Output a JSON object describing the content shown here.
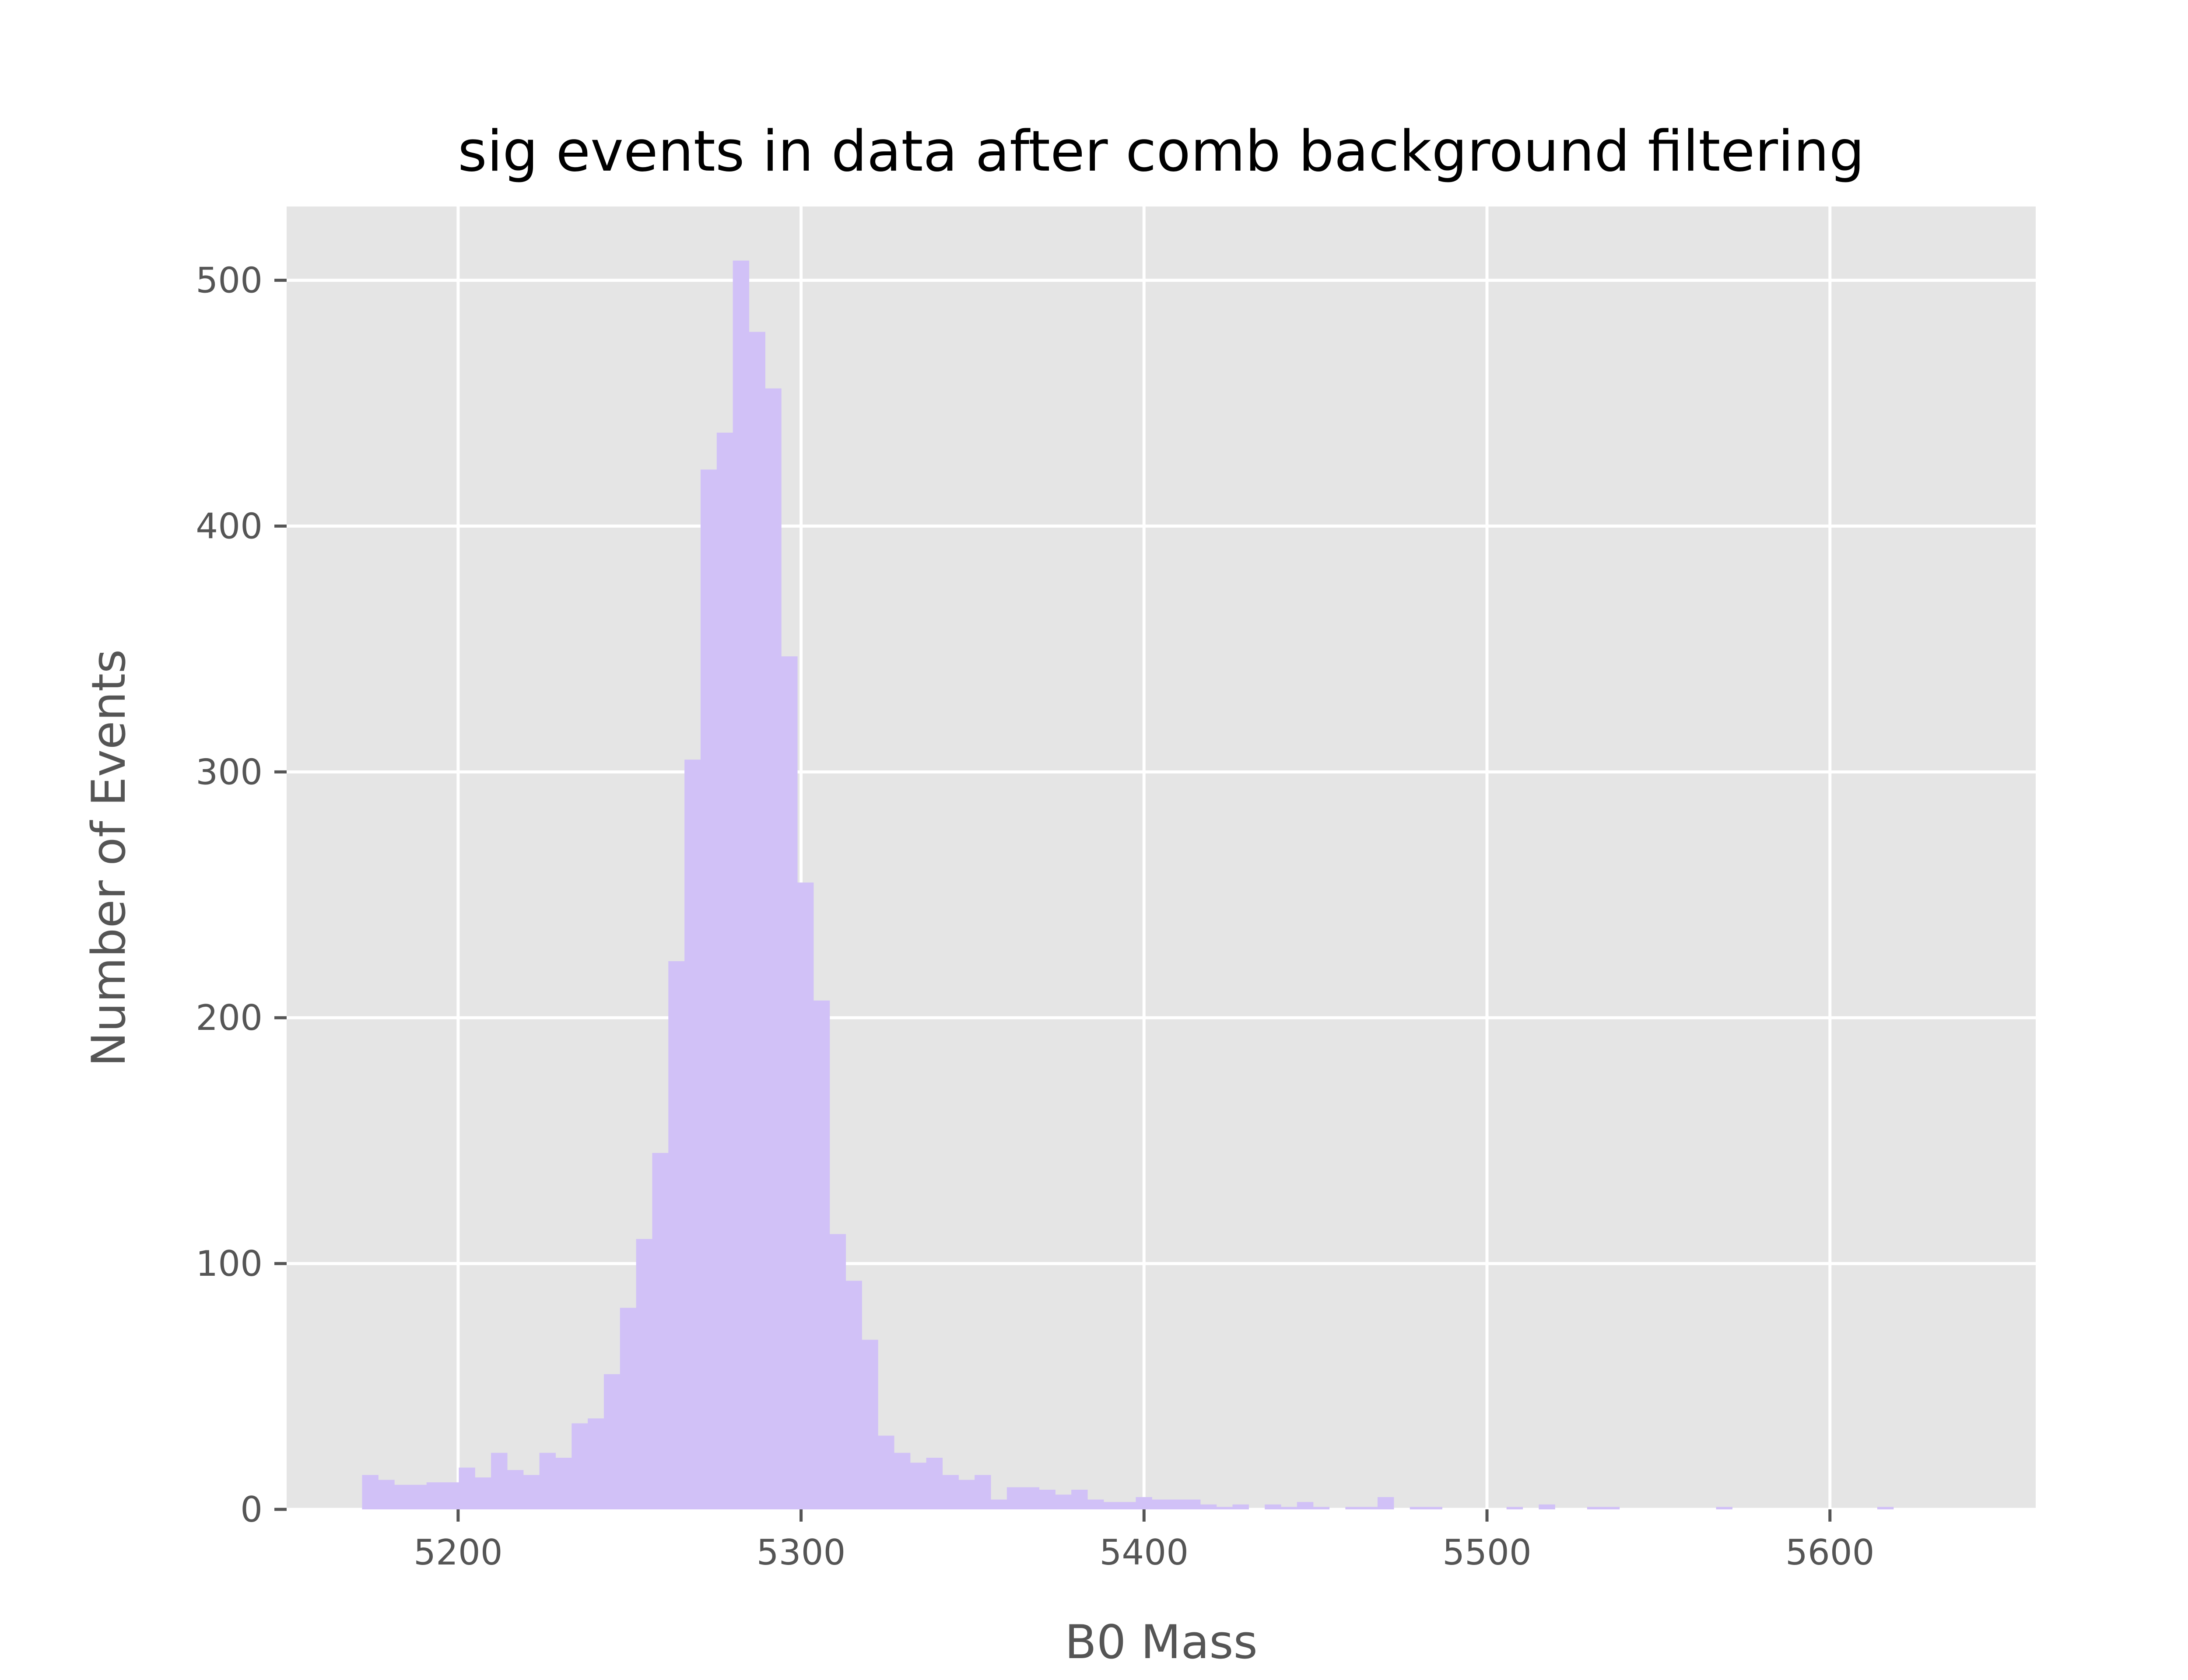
{
  "chart_data": {
    "type": "bar",
    "title": "sig events in data after comb background filtering",
    "xlabel": "B0 Mass",
    "ylabel": "Number of Events",
    "xlim": [
      5150,
      5660
    ],
    "ylim": [
      0,
      530
    ],
    "xticks": [
      5200,
      5300,
      5400,
      5500,
      5600
    ],
    "yticks": [
      0,
      100,
      200,
      300,
      400,
      500
    ],
    "grid": true,
    "legend": "none",
    "colors": {
      "bar": "#d1c1f7",
      "plot_bg": "#e5e5e5",
      "grid": "#ffffff",
      "tick": "#555555",
      "title": "#000000"
    },
    "bin_start": 5172,
    "bin_width": 4.7,
    "values": [
      14,
      12,
      10,
      10,
      11,
      11,
      17,
      13,
      23,
      16,
      14,
      23,
      21,
      35,
      37,
      55,
      82,
      110,
      145,
      223,
      305,
      423,
      438,
      508,
      479,
      456,
      347,
      255,
      207,
      112,
      93,
      69,
      30,
      23,
      19,
      21,
      14,
      12,
      14,
      4,
      9,
      9,
      8,
      6,
      8,
      4,
      3,
      3,
      5,
      4,
      4,
      4,
      2,
      1,
      2,
      0,
      2,
      1,
      3,
      1,
      0,
      1,
      1,
      5,
      0,
      1,
      1,
      0,
      0,
      0,
      0,
      1,
      0,
      2,
      0,
      0,
      1,
      1,
      0,
      0,
      0,
      0,
      0,
      0,
      1,
      0,
      0,
      0,
      0,
      0,
      0,
      0,
      0,
      0,
      1,
      0,
      0
    ]
  }
}
